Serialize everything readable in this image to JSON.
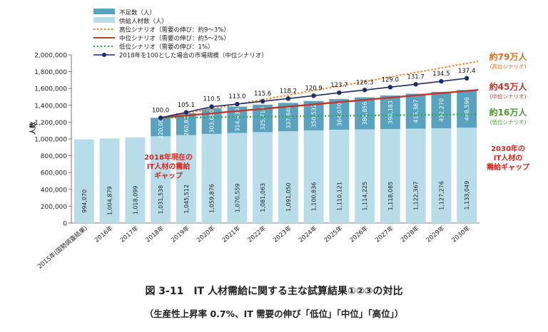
{
  "chart_data": {
    "type": "bar",
    "ylabel": "人数",
    "ylim": [
      0,
      2000000
    ],
    "yticks": [
      "0",
      "200,000",
      "400,000",
      "600,000",
      "800,000",
      "1,000,000",
      "1,200,000",
      "1,400,000",
      "1,600,000",
      "1,800,000",
      "2,000,000"
    ],
    "categories": [
      "2015年(国勢調査結果)",
      "2016年",
      "2017年",
      "2018年",
      "2019年",
      "2020年",
      "2021年",
      "2022年",
      "2023年",
      "2024年",
      "2025年",
      "2026年",
      "2027年",
      "2028年",
      "2029年",
      "2030年"
    ],
    "supply": {
      "name": "供給人材数（人）",
      "values": [
        994070,
        1004879,
        1018099,
        1031538,
        1045512,
        1059876,
        1070559,
        1081063,
        1091050,
        1100836,
        1110121,
        1114225,
        1118085,
        1122367,
        1127276,
        1133049
      ],
      "labels": [
        "994,070",
        "1,004,879",
        "1,018,099",
        "1,031,538",
        "1,045,512",
        "1,059,876",
        "1,070,559",
        "1,081,063",
        "1,091,050",
        "1,100,836",
        "1,110,121",
        "1,114,225",
        "1,118,085",
        "1,122,367",
        "1,127,276",
        "1,133,049"
      ]
    },
    "shortage": {
      "name": "不足数（人）",
      "values": [
        null,
        null,
        null,
        220000,
        260835,
        303680,
        314439,
        325714,
        337848,
        350532,
        364070,
        380856,
        398183,
        415387,
        432270,
        448596
      ],
      "labels": [
        "",
        "",
        "",
        "220,000",
        "260,835",
        "303,680",
        "314,439",
        "325,714",
        "337,848",
        "350,532",
        "364,070",
        "380,856",
        "398,183",
        "415,387",
        "432,270",
        "448,596"
      ]
    },
    "scenarios": [
      {
        "name": "高位シナリオ（需要の伸び：約9～3%）",
        "start": 1251538,
        "end": 1923049
      },
      {
        "name": "中位シナリオ（需要の伸び：約5～2%）",
        "start": 1251538,
        "end": 1583049
      },
      {
        "name": "低位シナリオ（需要の伸び：1%）",
        "start": 1251538,
        "end": 1293049
      }
    ],
    "market_index": {
      "name": "2018年を100とした場合の市場規模（中位シナリオ）",
      "values": [
        100.0,
        105.1,
        110.5,
        113.0,
        115.6,
        118.2,
        120.9,
        123.7,
        126.3,
        129.0,
        131.7,
        134.5,
        137.4
      ],
      "labels": [
        "100.0",
        "105.1",
        "110.5",
        "113.0",
        "115.6",
        "118.2",
        "120.9",
        "123.7",
        "126.3",
        "129.0",
        "131.7",
        "134.5",
        "137.4"
      ]
    },
    "annotations": {
      "high": {
        "main": "約79万人",
        "sub": "(高位シナリオ)"
      },
      "mid": {
        "main": "約45万人",
        "sub": "(中位シナリオ)"
      },
      "low": {
        "main": "約16万人",
        "sub": "(低位シナリオ)"
      },
      "gap2018": [
        "2018年現在の",
        "IT人材の需給",
        "ギャップ"
      ],
      "gap2030": [
        "2030年の",
        "IT人材の",
        "需給ギャップ"
      ]
    },
    "colors": {
      "supply": "#b9dde8",
      "shortage": "#5aa3c0",
      "high": "#f08a2c",
      "mid": "#c0392b",
      "low": "#2ea84a",
      "index": "#1f2d6b",
      "red_text": "#d9261c",
      "high_text": "#e07020",
      "low_text": "#4a9a35"
    }
  },
  "caption": {
    "title": "図 3-11　IT 人材需給に関する主な試算結果①②③の対比",
    "subtitle": "（生産性上昇率 0.7%、IT 需要の伸び「低位」「中位」「高位」）"
  }
}
